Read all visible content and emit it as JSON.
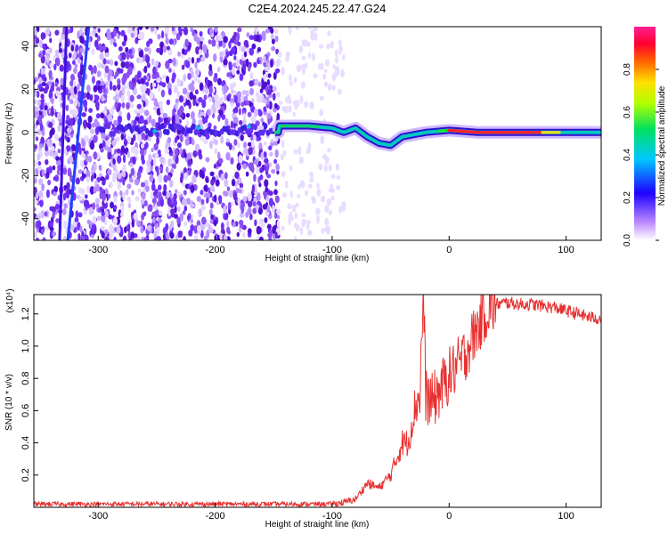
{
  "title": "C2E4.2024.245.22.47.G24",
  "chart_data": [
    {
      "type": "heatmap",
      "xlabel": "Height of straight line (km)",
      "ylabel": "Frequency (Hz)",
      "xlim": [
        -355,
        130
      ],
      "ylim": [
        -50,
        49
      ],
      "xticks": [
        -300,
        -200,
        -100,
        0,
        100
      ],
      "xtick_labels": [
        "-300",
        "-200",
        "-100",
        "0",
        "100"
      ],
      "yticks": [
        -40,
        -20,
        0,
        20,
        40
      ],
      "ytick_labels": [
        "-40",
        "-20",
        "0",
        "20",
        "40"
      ],
      "colorbar": {
        "label": "Normalized spectral amplitude",
        "range": [
          0,
          1
        ],
        "ticks": [
          0.0,
          0.2,
          0.4,
          0.6,
          0.8
        ],
        "tick_labels": [
          "0.0",
          "0.2",
          "0.4",
          "0.6",
          "0.8"
        ],
        "colormap": "rainbow (white-violet-blue-cyan-green-yellow-red-magenta)"
      },
      "features": {
        "dominant_line": {
          "description": "Main signal near 0 Hz, strongest (red) from ~0 to 75 km",
          "points": [
            [
              -145,
              3
            ],
            [
              -120,
              3
            ],
            [
              -100,
              2
            ],
            [
              -90,
              0
            ],
            [
              -80,
              2
            ],
            [
              -70,
              -2
            ],
            [
              -60,
              -5
            ],
            [
              -50,
              -6
            ],
            [
              -40,
              -2
            ],
            [
              -20,
              0
            ],
            [
              0,
              1
            ],
            [
              25,
              0
            ],
            [
              75,
              0
            ],
            [
              100,
              0
            ],
            [
              130,
              0
            ]
          ]
        },
        "noise_region_x": [
          -355,
          -100
        ],
        "diagonal_streaks": [
          {
            "x_at_top": -327,
            "x_at_bottom": -333
          },
          {
            "x_at_top": -308,
            "x_at_bottom": -326
          }
        ]
      }
    },
    {
      "type": "line",
      "xlabel": "Height of straight line (km)",
      "ylabel": "SNR (10 * v/v)",
      "y_scale_label": "(x10⁴)",
      "xlim": [
        -355,
        130
      ],
      "ylim": [
        0,
        1.32
      ],
      "xticks": [
        -300,
        -200,
        -100,
        0,
        100
      ],
      "xtick_labels": [
        "-300",
        "-200",
        "-100",
        "0",
        "100"
      ],
      "yticks": [
        0.2,
        0.4,
        0.6,
        0.8,
        1.0,
        1.2
      ],
      "ytick_labels": [
        "0.2",
        "0.4",
        "0.6",
        "0.8",
        "1.0",
        "1.2"
      ],
      "series": [
        {
          "color": "#e83030",
          "x": [
            -355,
            -300,
            -200,
            -150,
            -120,
            -100,
            -90,
            -80,
            -75,
            -70,
            -60,
            -50,
            -45,
            -40,
            -35,
            -30,
            -25,
            -22,
            -20,
            -15,
            -10,
            0,
            10,
            20,
            30,
            40,
            50,
            60,
            70,
            80,
            90,
            100,
            110,
            120,
            130
          ],
          "values": [
            0.02,
            0.02,
            0.02,
            0.02,
            0.02,
            0.02,
            0.03,
            0.05,
            0.1,
            0.15,
            0.12,
            0.2,
            0.3,
            0.4,
            0.4,
            0.6,
            0.7,
            1.32,
            0.7,
            0.65,
            0.7,
            0.82,
            0.9,
            1.05,
            1.2,
            1.26,
            1.27,
            1.26,
            1.26,
            1.25,
            1.24,
            1.22,
            1.2,
            1.18,
            1.17
          ]
        }
      ]
    }
  ]
}
